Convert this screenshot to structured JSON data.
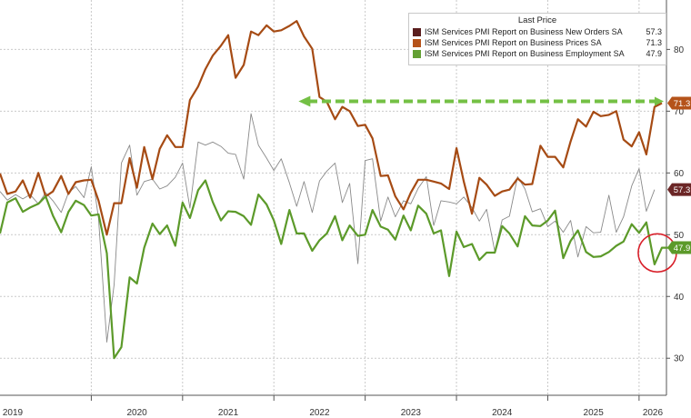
{
  "chart_data": {
    "type": "line",
    "legend": {
      "title": "Last Price",
      "placement": "top-right"
    },
    "x_labels": [
      "2019",
      "2020",
      "2021",
      "2022",
      "2023",
      "2024",
      "2025",
      "2026"
    ],
    "y_ticks": [
      30,
      40,
      50,
      60,
      70,
      80
    ],
    "ylim": [
      24,
      88
    ],
    "xlim": [
      2019.0,
      2026.3
    ],
    "grid": "dashed",
    "y_axis_side": "right",
    "series": [
      {
        "name": "ISM Services PMI Report on Business New Orders SA",
        "last": "57.3",
        "color": "#8a8a8a",
        "legend_color": "#5a1e1e",
        "badge_color": "#6b2626",
        "width": 0.9,
        "points": [
          [
            2019.0,
            57.0
          ],
          [
            2019.08,
            55.6
          ],
          [
            2019.17,
            56.5
          ],
          [
            2019.25,
            55.8
          ],
          [
            2019.33,
            56.5
          ],
          [
            2019.42,
            55.0
          ],
          [
            2019.5,
            56.8
          ],
          [
            2019.58,
            55.5
          ],
          [
            2019.67,
            53.6
          ],
          [
            2019.75,
            56.8
          ],
          [
            2019.83,
            57.8
          ],
          [
            2019.92,
            56.0
          ],
          [
            2020.0,
            61.0
          ],
          [
            2020.08,
            52.6
          ],
          [
            2020.17,
            32.6
          ],
          [
            2020.25,
            41.9
          ],
          [
            2020.33,
            61.6
          ],
          [
            2020.42,
            64.5
          ],
          [
            2020.5,
            56.4
          ],
          [
            2020.58,
            58.6
          ],
          [
            2020.67,
            59.0
          ],
          [
            2020.75,
            57.4
          ],
          [
            2020.83,
            57.9
          ],
          [
            2020.92,
            59.3
          ],
          [
            2021.0,
            61.6
          ],
          [
            2021.08,
            54.3
          ],
          [
            2021.17,
            65.0
          ],
          [
            2021.25,
            64.5
          ],
          [
            2021.33,
            65.0
          ],
          [
            2021.42,
            64.3
          ],
          [
            2021.5,
            63.2
          ],
          [
            2021.58,
            63.0
          ],
          [
            2021.67,
            59.0
          ],
          [
            2021.75,
            69.6
          ],
          [
            2021.83,
            64.5
          ],
          [
            2021.92,
            62.4
          ],
          [
            2022.0,
            60.4
          ],
          [
            2022.08,
            62.3
          ],
          [
            2022.17,
            58.4
          ],
          [
            2022.25,
            54.6
          ],
          [
            2022.33,
            58.6
          ],
          [
            2022.42,
            53.6
          ],
          [
            2022.5,
            58.7
          ],
          [
            2022.58,
            60.3
          ],
          [
            2022.67,
            61.6
          ],
          [
            2022.75,
            55.2
          ],
          [
            2022.83,
            58.3
          ],
          [
            2022.92,
            45.3
          ],
          [
            2023.0,
            62.0
          ],
          [
            2023.08,
            62.3
          ],
          [
            2023.17,
            52.2
          ],
          [
            2023.25,
            56.1
          ],
          [
            2023.33,
            52.9
          ],
          [
            2023.42,
            55.5
          ],
          [
            2023.5,
            55.0
          ],
          [
            2023.58,
            57.5
          ],
          [
            2023.67,
            59.4
          ],
          [
            2023.75,
            51.5
          ],
          [
            2023.83,
            55.5
          ],
          [
            2023.92,
            55.3
          ],
          [
            2024.0,
            55.0
          ],
          [
            2024.08,
            56.1
          ],
          [
            2024.17,
            54.4
          ],
          [
            2024.25,
            52.2
          ],
          [
            2024.33,
            54.1
          ],
          [
            2024.42,
            47.3
          ],
          [
            2024.5,
            52.4
          ],
          [
            2024.58,
            53.0
          ],
          [
            2024.67,
            59.4
          ],
          [
            2024.75,
            57.4
          ],
          [
            2024.83,
            53.7
          ],
          [
            2024.92,
            54.2
          ],
          [
            2025.0,
            51.3
          ],
          [
            2025.08,
            52.2
          ],
          [
            2025.17,
            50.4
          ],
          [
            2025.25,
            52.3
          ],
          [
            2025.33,
            46.4
          ],
          [
            2025.42,
            51.3
          ],
          [
            2025.5,
            50.3
          ],
          [
            2025.58,
            50.4
          ],
          [
            2025.67,
            56.4
          ],
          [
            2025.75,
            50.4
          ],
          [
            2025.83,
            52.9
          ],
          [
            2025.92,
            57.9
          ],
          [
            2026.0,
            60.7
          ],
          [
            2026.08,
            53.8
          ],
          [
            2026.17,
            57.3
          ]
        ]
      },
      {
        "name": "ISM Services PMI Report on Business Prices SA",
        "last": "71.3",
        "color": "#a64b14",
        "legend_color": "#b5531a",
        "badge_color": "#b5531a",
        "width": 2.2,
        "points": [
          [
            2019.0,
            59.9
          ],
          [
            2019.08,
            56.6
          ],
          [
            2019.17,
            57.0
          ],
          [
            2019.25,
            58.8
          ],
          [
            2019.33,
            56.0
          ],
          [
            2019.42,
            60.0
          ],
          [
            2019.5,
            56.2
          ],
          [
            2019.58,
            57.0
          ],
          [
            2019.67,
            59.5
          ],
          [
            2019.75,
            56.6
          ],
          [
            2019.83,
            58.5
          ],
          [
            2019.92,
            58.8
          ],
          [
            2020.0,
            58.9
          ],
          [
            2020.08,
            55.5
          ],
          [
            2020.17,
            50.0
          ],
          [
            2020.25,
            55.1
          ],
          [
            2020.33,
            55.1
          ],
          [
            2020.42,
            62.4
          ],
          [
            2020.5,
            57.6
          ],
          [
            2020.58,
            64.2
          ],
          [
            2020.67,
            59.0
          ],
          [
            2020.75,
            63.9
          ],
          [
            2020.83,
            66.1
          ],
          [
            2020.92,
            64.2
          ],
          [
            2021.0,
            64.2
          ],
          [
            2021.08,
            71.8
          ],
          [
            2021.17,
            74.0
          ],
          [
            2021.25,
            76.8
          ],
          [
            2021.33,
            79.0
          ],
          [
            2021.42,
            80.6
          ],
          [
            2021.5,
            82.3
          ],
          [
            2021.58,
            75.4
          ],
          [
            2021.67,
            77.5
          ],
          [
            2021.75,
            82.9
          ],
          [
            2021.83,
            82.3
          ],
          [
            2021.92,
            83.9
          ],
          [
            2022.0,
            82.9
          ],
          [
            2022.08,
            83.1
          ],
          [
            2022.17,
            83.8
          ],
          [
            2022.25,
            84.6
          ],
          [
            2022.33,
            82.1
          ],
          [
            2022.42,
            80.1
          ],
          [
            2022.5,
            72.3
          ],
          [
            2022.58,
            71.5
          ],
          [
            2022.67,
            68.7
          ],
          [
            2022.75,
            70.7
          ],
          [
            2022.83,
            70.0
          ],
          [
            2022.92,
            67.6
          ],
          [
            2023.0,
            67.8
          ],
          [
            2023.08,
            65.6
          ],
          [
            2023.17,
            59.5
          ],
          [
            2023.25,
            59.6
          ],
          [
            2023.33,
            56.2
          ],
          [
            2023.42,
            54.1
          ],
          [
            2023.5,
            56.8
          ],
          [
            2023.58,
            58.9
          ],
          [
            2023.67,
            58.9
          ],
          [
            2023.75,
            58.6
          ],
          [
            2023.83,
            58.3
          ],
          [
            2023.92,
            57.4
          ],
          [
            2024.0,
            64.0
          ],
          [
            2024.08,
            58.6
          ],
          [
            2024.17,
            53.4
          ],
          [
            2024.25,
            59.2
          ],
          [
            2024.33,
            58.1
          ],
          [
            2024.42,
            56.3
          ],
          [
            2024.5,
            57.0
          ],
          [
            2024.58,
            57.3
          ],
          [
            2024.67,
            59.1
          ],
          [
            2024.75,
            58.1
          ],
          [
            2024.83,
            58.2
          ],
          [
            2024.92,
            64.4
          ],
          [
            2025.0,
            62.6
          ],
          [
            2025.08,
            62.6
          ],
          [
            2025.17,
            60.9
          ],
          [
            2025.25,
            65.1
          ],
          [
            2025.33,
            68.7
          ],
          [
            2025.42,
            67.5
          ],
          [
            2025.5,
            69.9
          ],
          [
            2025.58,
            69.2
          ],
          [
            2025.67,
            69.4
          ],
          [
            2025.75,
            70.0
          ],
          [
            2025.83,
            65.4
          ],
          [
            2025.92,
            64.3
          ],
          [
            2026.0,
            66.6
          ],
          [
            2026.08,
            63.0
          ],
          [
            2026.17,
            70.7
          ],
          [
            2026.25,
            71.3
          ]
        ]
      },
      {
        "name": "ISM Services PMI Report on Business Employment SA",
        "last": "47.9",
        "color": "#5c9a2a",
        "legend_color": "#63a034",
        "badge_color": "#5c9a2a",
        "width": 2.2,
        "points": [
          [
            2019.0,
            50.2
          ],
          [
            2019.08,
            55.2
          ],
          [
            2019.17,
            55.9
          ],
          [
            2019.25,
            53.7
          ],
          [
            2019.33,
            54.4
          ],
          [
            2019.42,
            55.0
          ],
          [
            2019.5,
            56.2
          ],
          [
            2019.58,
            53.1
          ],
          [
            2019.67,
            50.4
          ],
          [
            2019.75,
            53.7
          ],
          [
            2019.83,
            55.5
          ],
          [
            2019.92,
            54.8
          ],
          [
            2020.0,
            53.1
          ],
          [
            2020.08,
            53.3
          ],
          [
            2020.17,
            47.0
          ],
          [
            2020.25,
            30.0
          ],
          [
            2020.33,
            31.8
          ],
          [
            2020.42,
            43.1
          ],
          [
            2020.5,
            42.1
          ],
          [
            2020.58,
            47.9
          ],
          [
            2020.67,
            51.8
          ],
          [
            2020.75,
            50.1
          ],
          [
            2020.83,
            51.5
          ],
          [
            2020.92,
            48.2
          ],
          [
            2021.0,
            55.2
          ],
          [
            2021.08,
            52.7
          ],
          [
            2021.17,
            57.2
          ],
          [
            2021.25,
            58.8
          ],
          [
            2021.33,
            55.3
          ],
          [
            2021.42,
            52.3
          ],
          [
            2021.5,
            53.8
          ],
          [
            2021.58,
            53.7
          ],
          [
            2021.67,
            53.0
          ],
          [
            2021.75,
            51.6
          ],
          [
            2021.83,
            56.5
          ],
          [
            2021.92,
            54.9
          ],
          [
            2022.0,
            52.3
          ],
          [
            2022.08,
            48.5
          ],
          [
            2022.17,
            54.0
          ],
          [
            2022.25,
            50.2
          ],
          [
            2022.33,
            50.2
          ],
          [
            2022.42,
            47.4
          ],
          [
            2022.5,
            49.1
          ],
          [
            2022.58,
            50.2
          ],
          [
            2022.67,
            53.0
          ],
          [
            2022.75,
            49.1
          ],
          [
            2022.83,
            51.5
          ],
          [
            2022.92,
            49.8
          ],
          [
            2023.0,
            50.0
          ],
          [
            2023.08,
            54.0
          ],
          [
            2023.17,
            51.3
          ],
          [
            2023.25,
            50.8
          ],
          [
            2023.33,
            49.2
          ],
          [
            2023.42,
            53.1
          ],
          [
            2023.5,
            50.7
          ],
          [
            2023.58,
            54.7
          ],
          [
            2023.67,
            53.4
          ],
          [
            2023.75,
            50.2
          ],
          [
            2023.83,
            50.7
          ],
          [
            2023.92,
            43.3
          ],
          [
            2024.0,
            50.5
          ],
          [
            2024.08,
            48.0
          ],
          [
            2024.17,
            48.5
          ],
          [
            2024.25,
            45.9
          ],
          [
            2024.33,
            47.1
          ],
          [
            2024.42,
            47.1
          ],
          [
            2024.5,
            51.4
          ],
          [
            2024.58,
            50.2
          ],
          [
            2024.67,
            48.1
          ],
          [
            2024.75,
            53.0
          ],
          [
            2024.83,
            51.5
          ],
          [
            2024.92,
            51.4
          ],
          [
            2025.0,
            52.3
          ],
          [
            2025.08,
            53.9
          ],
          [
            2025.17,
            46.2
          ],
          [
            2025.25,
            49.0
          ],
          [
            2025.33,
            50.7
          ],
          [
            2025.42,
            47.2
          ],
          [
            2025.5,
            46.4
          ],
          [
            2025.58,
            46.5
          ],
          [
            2025.67,
            47.2
          ],
          [
            2025.75,
            48.2
          ],
          [
            2025.83,
            48.9
          ],
          [
            2025.92,
            51.7
          ],
          [
            2026.0,
            50.3
          ],
          [
            2026.08,
            52.0
          ],
          [
            2026.17,
            45.2
          ],
          [
            2026.25,
            47.9
          ],
          [
            2026.33,
            47.9
          ]
        ]
      }
    ],
    "annotations": {
      "arrow": {
        "from": [
          2026.25,
          71.3
        ],
        "to": [
          2022.25,
          71.3
        ],
        "color": "#74c045",
        "style": "dashed"
      },
      "circle": {
        "center": [
          2026.17,
          47.5
        ],
        "color": "#d8202a"
      }
    }
  }
}
